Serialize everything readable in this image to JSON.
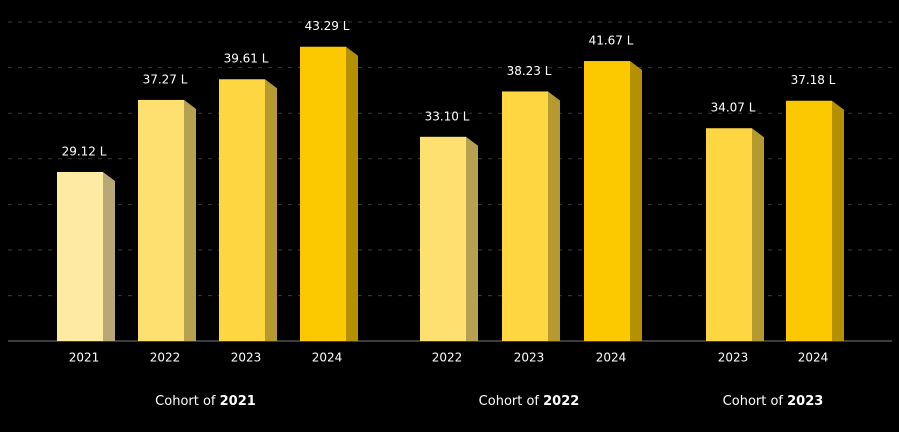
{
  "chart_data": {
    "type": "bar3d",
    "ylim": [
      10,
      47.5
    ],
    "groups": [
      {
        "label_prefix": "Cohort of",
        "name": "2021",
        "categories": [
          "2021",
          "2022",
          "2023",
          "2024"
        ],
        "values": [
          29.12,
          37.27,
          39.61,
          43.29
        ],
        "value_labels": [
          "29.12 L",
          "37.27 L",
          "39.61 L",
          "43.29 L"
        ],
        "colors": [
          "#feeaa2",
          "#fde070",
          "#fdd642",
          "#fcc800"
        ]
      },
      {
        "label_prefix": "Cohort of",
        "name": "2022",
        "categories": [
          "2022",
          "2023",
          "2024"
        ],
        "values": [
          33.1,
          38.23,
          41.67
        ],
        "value_labels": [
          "33.10 L",
          "38.23 L",
          "41.67 L"
        ],
        "colors": [
          "#fde070",
          "#fdd642",
          "#fcc800"
        ]
      },
      {
        "label_prefix": "Cohort of",
        "name": "2023",
        "categories": [
          "2023",
          "2024"
        ],
        "values": [
          34.07,
          37.18
        ],
        "value_labels": [
          "34.07 L",
          "37.18 L"
        ],
        "colors": [
          "#fdd642",
          "#fcc800"
        ]
      }
    ]
  }
}
